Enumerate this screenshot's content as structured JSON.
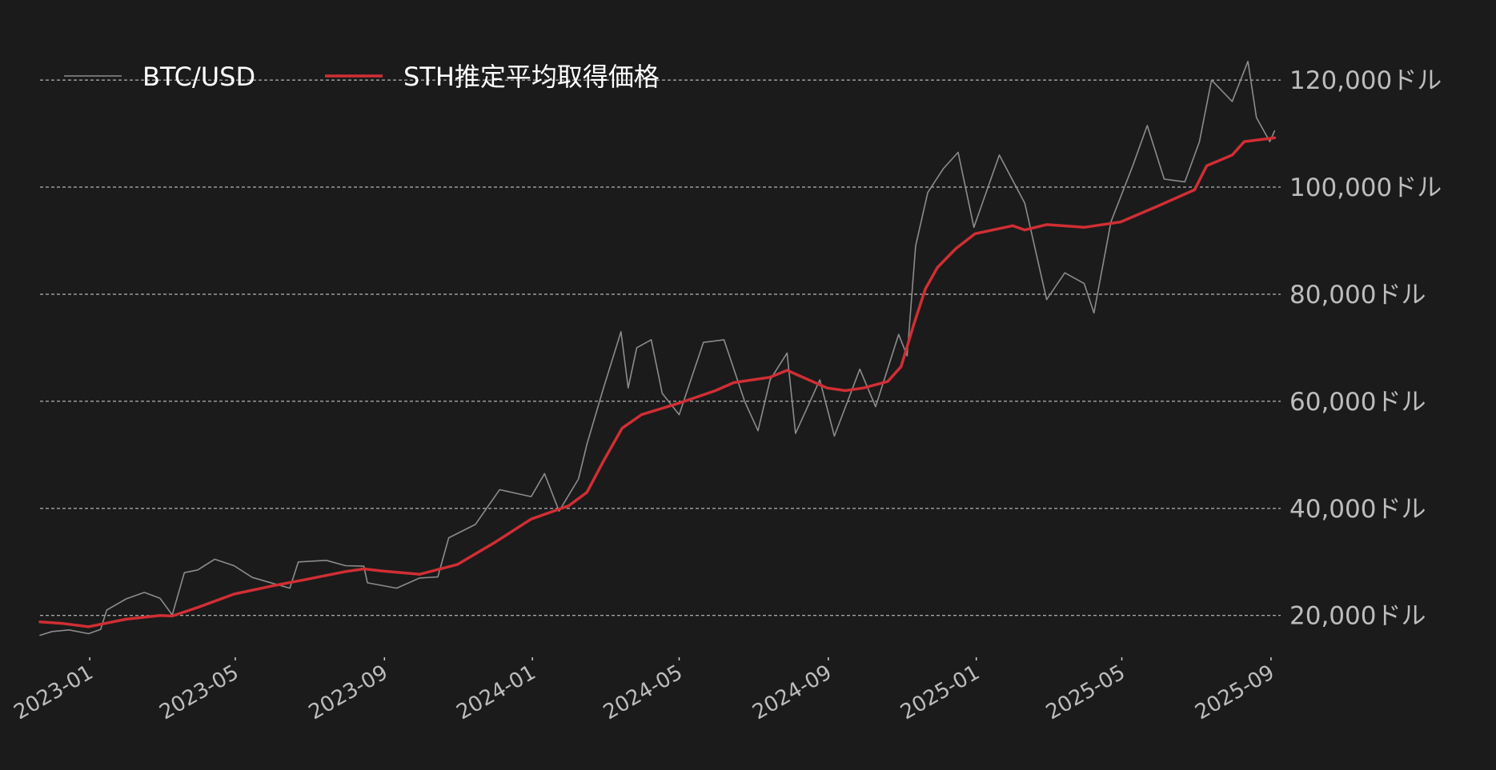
{
  "chart_data": {
    "type": "line",
    "title": "",
    "xlabel": "",
    "ylabel": "",
    "x_range": [
      "2022-11-21",
      "2025-09-09"
    ],
    "y_range": [
      11000,
      124500
    ],
    "y_axis_position": "right",
    "grid": {
      "y": true,
      "x": false,
      "style": "dashed"
    },
    "legend": {
      "placement": "top-left"
    },
    "y_ticks": [
      {
        "value": 20000,
        "label": "20,000ドル"
      },
      {
        "value": 40000,
        "label": "40,000ドル"
      },
      {
        "value": 60000,
        "label": "60,000ドル"
      },
      {
        "value": 80000,
        "label": "80,000ドル"
      },
      {
        "value": 100000,
        "label": "100,000ドル"
      },
      {
        "value": 120000,
        "label": "120,000ドル"
      }
    ],
    "x_ticks": [
      {
        "date": "2023-01-01",
        "label": "2023-01"
      },
      {
        "date": "2023-05-01",
        "label": "2023-05"
      },
      {
        "date": "2023-09-01",
        "label": "2023-09"
      },
      {
        "date": "2024-01-01",
        "label": "2024-01"
      },
      {
        "date": "2024-05-01",
        "label": "2024-05"
      },
      {
        "date": "2024-09-01",
        "label": "2024-09"
      },
      {
        "date": "2025-01-01",
        "label": "2025-01"
      },
      {
        "date": "2025-05-01",
        "label": "2025-05"
      },
      {
        "date": "2025-09-01",
        "label": "2025-09"
      }
    ],
    "series": [
      {
        "name": "BTC/USD",
        "color": "#8c8c8c",
        "points": [
          [
            "2022-11-21",
            16300
          ],
          [
            "2022-12-01",
            17000
          ],
          [
            "2022-12-15",
            17300
          ],
          [
            "2022-12-31",
            16600
          ],
          [
            "2023-01-10",
            17400
          ],
          [
            "2023-01-15",
            21000
          ],
          [
            "2023-01-31",
            23100
          ],
          [
            "2023-02-15",
            24300
          ],
          [
            "2023-02-28",
            23200
          ],
          [
            "2023-03-10",
            20100
          ],
          [
            "2023-03-20",
            28000
          ],
          [
            "2023-03-31",
            28500
          ],
          [
            "2023-04-14",
            30500
          ],
          [
            "2023-04-30",
            29300
          ],
          [
            "2023-05-15",
            27100
          ],
          [
            "2023-06-15",
            25100
          ],
          [
            "2023-06-22",
            30000
          ],
          [
            "2023-07-15",
            30300
          ],
          [
            "2023-07-31",
            29300
          ],
          [
            "2023-08-15",
            29200
          ],
          [
            "2023-08-18",
            26100
          ],
          [
            "2023-09-11",
            25100
          ],
          [
            "2023-09-30",
            27000
          ],
          [
            "2023-10-15",
            27200
          ],
          [
            "2023-10-24",
            34500
          ],
          [
            "2023-11-15",
            37000
          ],
          [
            "2023-12-05",
            43500
          ],
          [
            "2023-12-31",
            42200
          ],
          [
            "2024-01-11",
            46500
          ],
          [
            "2024-01-23",
            39500
          ],
          [
            "2024-02-08",
            45500
          ],
          [
            "2024-02-15",
            52000
          ],
          [
            "2024-02-28",
            62000
          ],
          [
            "2024-03-14",
            73000
          ],
          [
            "2024-03-20",
            62500
          ],
          [
            "2024-03-27",
            70000
          ],
          [
            "2024-04-08",
            71500
          ],
          [
            "2024-04-17",
            61500
          ],
          [
            "2024-05-01",
            57500
          ],
          [
            "2024-05-21",
            71000
          ],
          [
            "2024-06-07",
            71500
          ],
          [
            "2024-06-24",
            60000
          ],
          [
            "2024-07-05",
            54500
          ],
          [
            "2024-07-15",
            64000
          ],
          [
            "2024-07-29",
            69000
          ],
          [
            "2024-08-05",
            54000
          ],
          [
            "2024-08-25",
            64000
          ],
          [
            "2024-09-06",
            53500
          ],
          [
            "2024-09-27",
            66000
          ],
          [
            "2024-10-10",
            59000
          ],
          [
            "2024-10-29",
            72500
          ],
          [
            "2024-11-05",
            68500
          ],
          [
            "2024-11-12",
            89000
          ],
          [
            "2024-11-22",
            99000
          ],
          [
            "2024-12-05",
            103500
          ],
          [
            "2024-12-17",
            106500
          ],
          [
            "2024-12-30",
            92500
          ],
          [
            "2025-01-20",
            106000
          ],
          [
            "2025-02-10",
            97000
          ],
          [
            "2025-02-28",
            79000
          ],
          [
            "2025-03-15",
            84000
          ],
          [
            "2025-03-31",
            82000
          ],
          [
            "2025-04-08",
            76500
          ],
          [
            "2025-04-22",
            93500
          ],
          [
            "2025-05-10",
            104000
          ],
          [
            "2025-05-22",
            111500
          ],
          [
            "2025-06-05",
            101500
          ],
          [
            "2025-06-22",
            101000
          ],
          [
            "2025-07-04",
            108500
          ],
          [
            "2025-07-14",
            120000
          ],
          [
            "2025-07-31",
            116000
          ],
          [
            "2025-08-13",
            123500
          ],
          [
            "2025-08-20",
            113000
          ],
          [
            "2025-08-31",
            108500
          ],
          [
            "2025-09-04",
            110500
          ]
        ]
      },
      {
        "name": "STH推定平均取得価格",
        "color": "#d12e34",
        "points": [
          [
            "2022-11-21",
            18800
          ],
          [
            "2022-12-10",
            18500
          ],
          [
            "2022-12-31",
            17900
          ],
          [
            "2023-01-31",
            19300
          ],
          [
            "2023-02-28",
            20000
          ],
          [
            "2023-03-10",
            19900
          ],
          [
            "2023-03-31",
            21500
          ],
          [
            "2023-04-30",
            24000
          ],
          [
            "2023-05-31",
            25500
          ],
          [
            "2023-06-30",
            26800
          ],
          [
            "2023-07-31",
            28200
          ],
          [
            "2023-08-15",
            28700
          ],
          [
            "2023-08-31",
            28300
          ],
          [
            "2023-09-30",
            27700
          ],
          [
            "2023-10-31",
            29500
          ],
          [
            "2023-11-30",
            33500
          ],
          [
            "2023-12-31",
            38000
          ],
          [
            "2024-01-31",
            40500
          ],
          [
            "2024-02-15",
            43000
          ],
          [
            "2024-02-29",
            49000
          ],
          [
            "2024-03-15",
            55000
          ],
          [
            "2024-03-31",
            57500
          ],
          [
            "2024-04-30",
            59600
          ],
          [
            "2024-05-31",
            62000
          ],
          [
            "2024-06-15",
            63500
          ],
          [
            "2024-07-15",
            64500
          ],
          [
            "2024-07-29",
            65800
          ],
          [
            "2024-08-31",
            62500
          ],
          [
            "2024-09-15",
            62000
          ],
          [
            "2024-09-30",
            62500
          ],
          [
            "2024-10-20",
            63700
          ],
          [
            "2024-10-31",
            66500
          ],
          [
            "2024-11-10",
            74000
          ],
          [
            "2024-11-20",
            81000
          ],
          [
            "2024-11-30",
            85000
          ],
          [
            "2024-12-15",
            88500
          ],
          [
            "2024-12-31",
            91300
          ],
          [
            "2025-01-31",
            92800
          ],
          [
            "2025-02-10",
            92000
          ],
          [
            "2025-02-28",
            93000
          ],
          [
            "2025-03-31",
            92500
          ],
          [
            "2025-04-30",
            93500
          ],
          [
            "2025-05-31",
            96500
          ],
          [
            "2025-06-30",
            99500
          ],
          [
            "2025-07-10",
            104000
          ],
          [
            "2025-07-31",
            106000
          ],
          [
            "2025-08-10",
            108500
          ],
          [
            "2025-09-04",
            109200
          ]
        ]
      }
    ]
  }
}
